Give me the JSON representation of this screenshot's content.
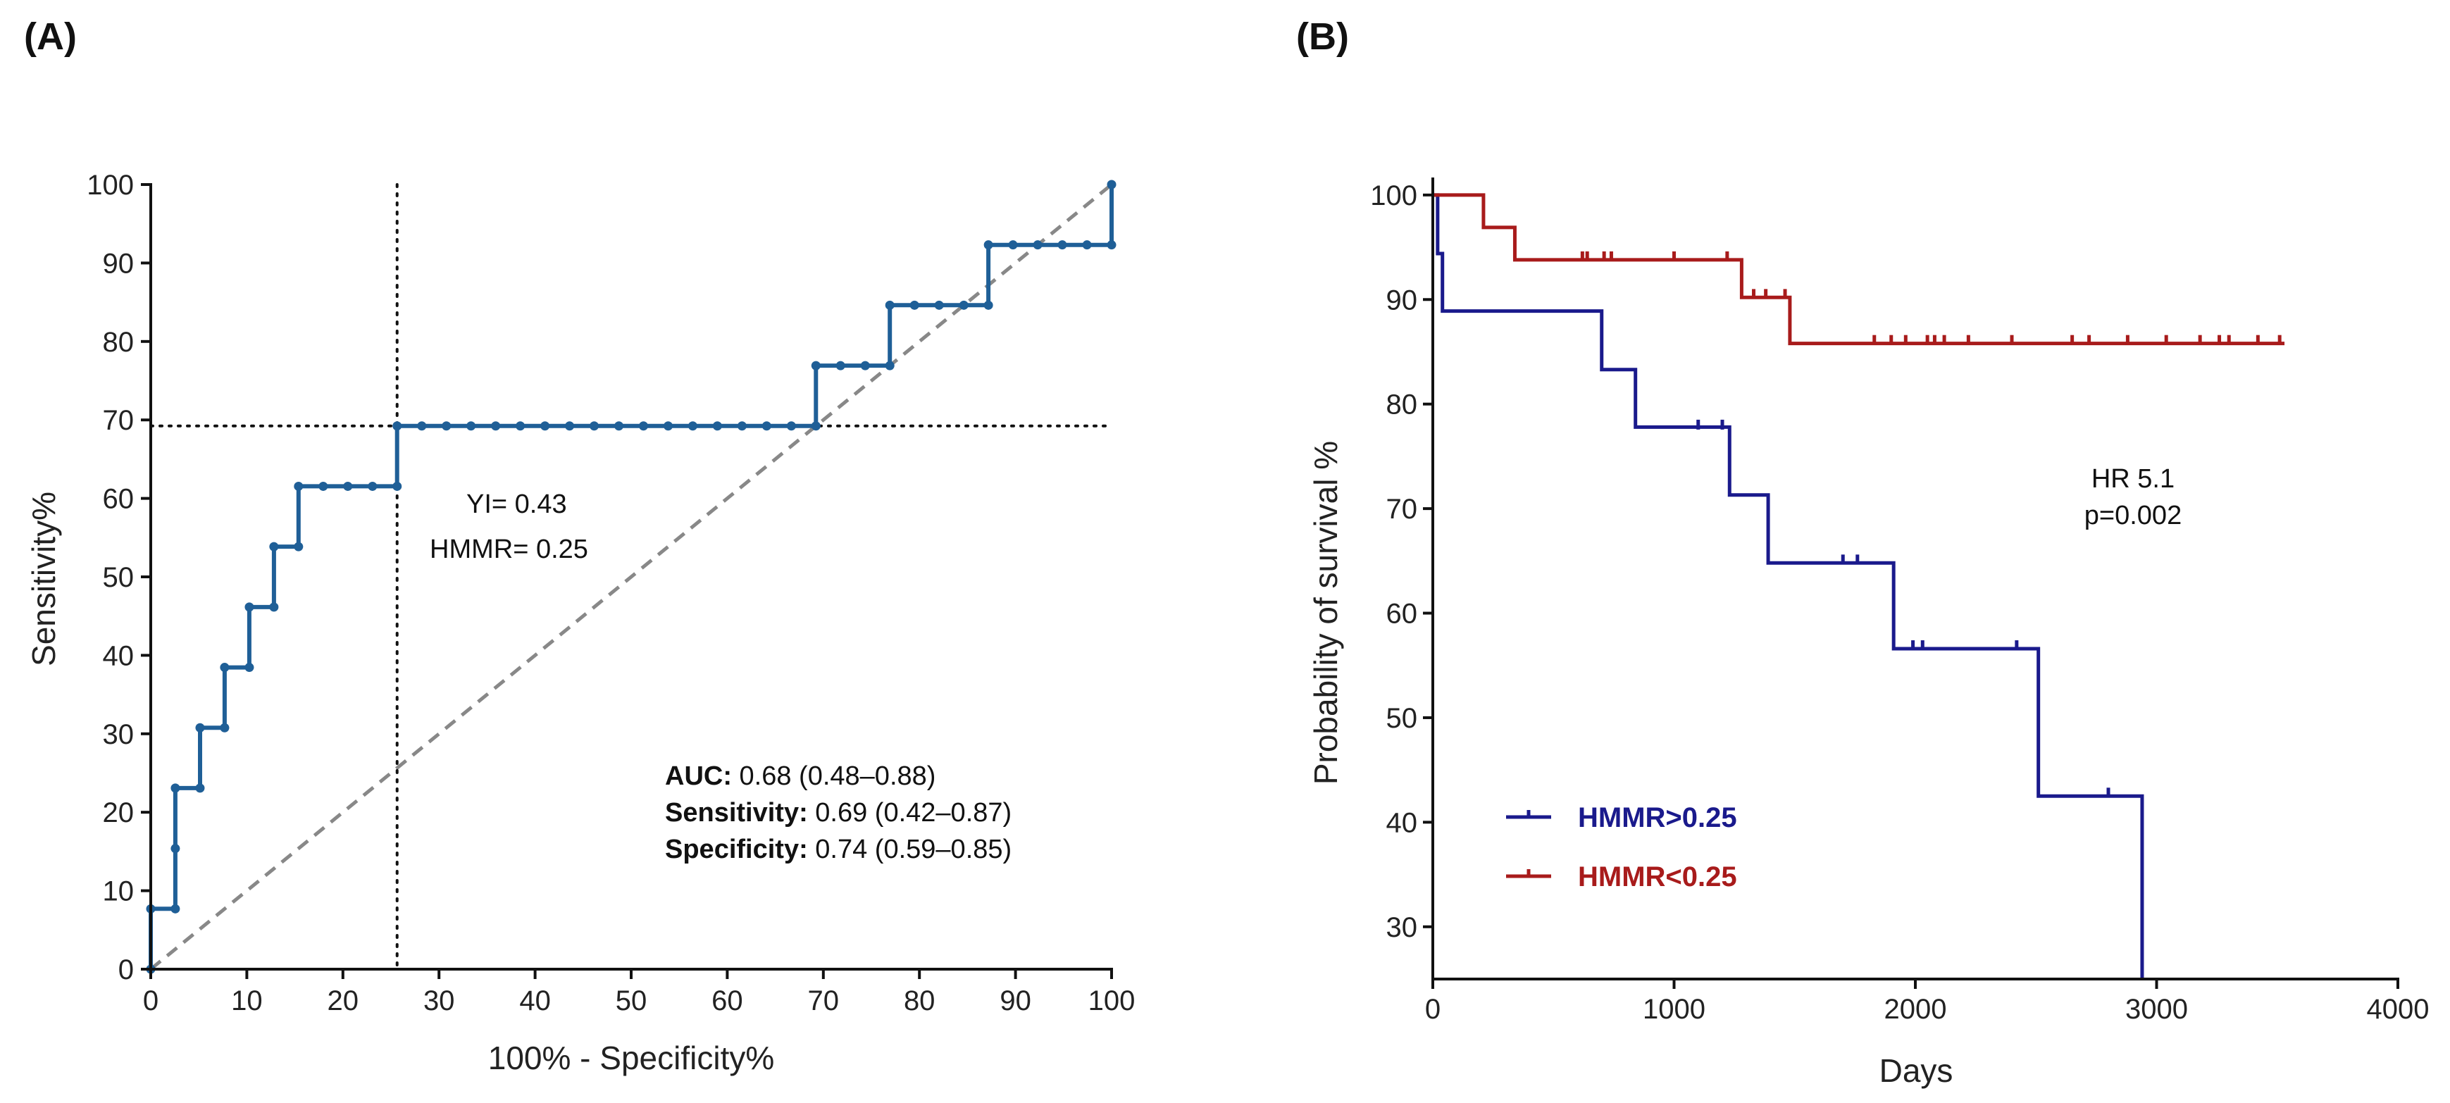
{
  "panels": {
    "a_label": "(A)",
    "b_label": "(B)"
  },
  "chart_data": [
    {
      "type": "line",
      "subtype": "roc",
      "panel": "(A)",
      "xlabel": "100% - Specificity%",
      "ylabel": "Sensitivity%",
      "xlim": [
        0,
        100
      ],
      "ylim": [
        0,
        100
      ],
      "xticks": [
        0,
        10,
        20,
        30,
        40,
        50,
        60,
        70,
        80,
        90,
        100
      ],
      "yticks": [
        0,
        10,
        20,
        30,
        40,
        50,
        60,
        70,
        80,
        90,
        100
      ],
      "grid": false,
      "color": "#1f5f97",
      "series": [
        {
          "name": "ROC",
          "x": [
            0,
            0,
            2.56,
            2.56,
            2.56,
            5.13,
            5.13,
            7.69,
            7.69,
            10.26,
            10.26,
            12.82,
            12.82,
            15.38,
            15.38,
            17.95,
            20.51,
            23.08,
            25.64,
            25.64,
            28.21,
            30.77,
            33.33,
            35.9,
            38.46,
            41.03,
            43.59,
            46.15,
            48.72,
            51.28,
            53.85,
            56.41,
            58.97,
            61.54,
            64.1,
            66.67,
            69.23,
            69.23,
            71.79,
            74.36,
            76.92,
            76.92,
            79.49,
            82.05,
            84.62,
            87.18,
            87.18,
            89.74,
            92.31,
            94.87,
            97.44,
            100,
            100
          ],
          "y": [
            0,
            7.69,
            7.69,
            15.38,
            23.08,
            23.08,
            30.77,
            30.77,
            38.46,
            38.46,
            46.15,
            46.15,
            53.85,
            53.85,
            61.54,
            61.54,
            61.54,
            61.54,
            61.54,
            69.23,
            69.23,
            69.23,
            69.23,
            69.23,
            69.23,
            69.23,
            69.23,
            69.23,
            69.23,
            69.23,
            69.23,
            69.23,
            69.23,
            69.23,
            69.23,
            69.23,
            69.23,
            76.92,
            76.92,
            76.92,
            76.92,
            84.62,
            84.62,
            84.62,
            84.62,
            84.62,
            92.31,
            92.31,
            92.31,
            92.31,
            92.31,
            92.31,
            100
          ]
        }
      ],
      "reference_line": {
        "from": [
          0,
          0
        ],
        "to": [
          100,
          100
        ],
        "style": "dashed",
        "color": "#888888"
      },
      "cutoff_lines": {
        "x": 25.64,
        "y": 69.23,
        "style": "dotted"
      },
      "annotations": {
        "yi": "YI= 0.43",
        "hmmr": "HMMR= 0.25",
        "auc_label": "AUC:",
        "auc_value": " 0.68 (0.48–0.88)",
        "sens_label": "Sensitivity:",
        "sens_value": "  0.69 (0.42–0.87)",
        "spec_label": "Specificity:",
        "spec_value": " 0.74 (0.59–0.85)"
      }
    },
    {
      "type": "line",
      "subtype": "kaplan-meier",
      "panel": "(B)",
      "xlabel": "Days",
      "ylabel": "Probability of survival %",
      "xlim": [
        0,
        4000
      ],
      "ylim": [
        25,
        101
      ],
      "xticks": [
        0,
        1000,
        2000,
        3000,
        4000
      ],
      "yticks": [
        30,
        40,
        50,
        60,
        70,
        80,
        90,
        100
      ],
      "grid": false,
      "legend_position": "bottom-left",
      "annotations": {
        "hr": "HR 5.1",
        "p": "p=0.002"
      },
      "series": [
        {
          "name": "HMMR>0.25",
          "color": "#1a1a8c",
          "steps": [
            [
              0,
              100
            ],
            [
              20,
              94.4
            ],
            [
              40,
              88.9
            ],
            [
              700,
              83.3
            ],
            [
              840,
              77.8
            ],
            [
              1230,
              71.3
            ],
            [
              1390,
              64.8
            ],
            [
              1910,
              56.6
            ],
            [
              2510,
              42.5
            ],
            [
              2940,
              25
            ]
          ],
          "censored": [
            [
              1100,
              78.1
            ],
            [
              1200,
              78.1
            ],
            [
              1700,
              65.2
            ],
            [
              1760,
              65.2
            ],
            [
              1990,
              57.0
            ],
            [
              2030,
              57.0
            ],
            [
              2420,
              57.0
            ],
            [
              2800,
              42.9
            ]
          ]
        },
        {
          "name": "HMMR<0.25",
          "color": "#a81b1b",
          "steps": [
            [
              0,
              100
            ],
            [
              210,
              96.9
            ],
            [
              340,
              93.8
            ],
            [
              1280,
              90.2
            ],
            [
              1480,
              85.8
            ],
            [
              3530,
              85.8
            ]
          ],
          "censored": [
            [
              620,
              94.2
            ],
            [
              640,
              94.2
            ],
            [
              710,
              94.2
            ],
            [
              740,
              94.2
            ],
            [
              1000,
              94.2
            ],
            [
              1220,
              94.2
            ],
            [
              1330,
              90.6
            ],
            [
              1380,
              90.6
            ],
            [
              1460,
              90.6
            ],
            [
              1830,
              86.2
            ],
            [
              1900,
              86.2
            ],
            [
              1960,
              86.2
            ],
            [
              2050,
              86.2
            ],
            [
              2080,
              86.2
            ],
            [
              2120,
              86.2
            ],
            [
              2220,
              86.2
            ],
            [
              2400,
              86.2
            ],
            [
              2650,
              86.2
            ],
            [
              2720,
              86.2
            ],
            [
              2880,
              86.2
            ],
            [
              3040,
              86.2
            ],
            [
              3180,
              86.2
            ],
            [
              3260,
              86.2
            ],
            [
              3300,
              86.2
            ],
            [
              3420,
              86.2
            ],
            [
              3510,
              86.2
            ]
          ]
        }
      ]
    }
  ]
}
